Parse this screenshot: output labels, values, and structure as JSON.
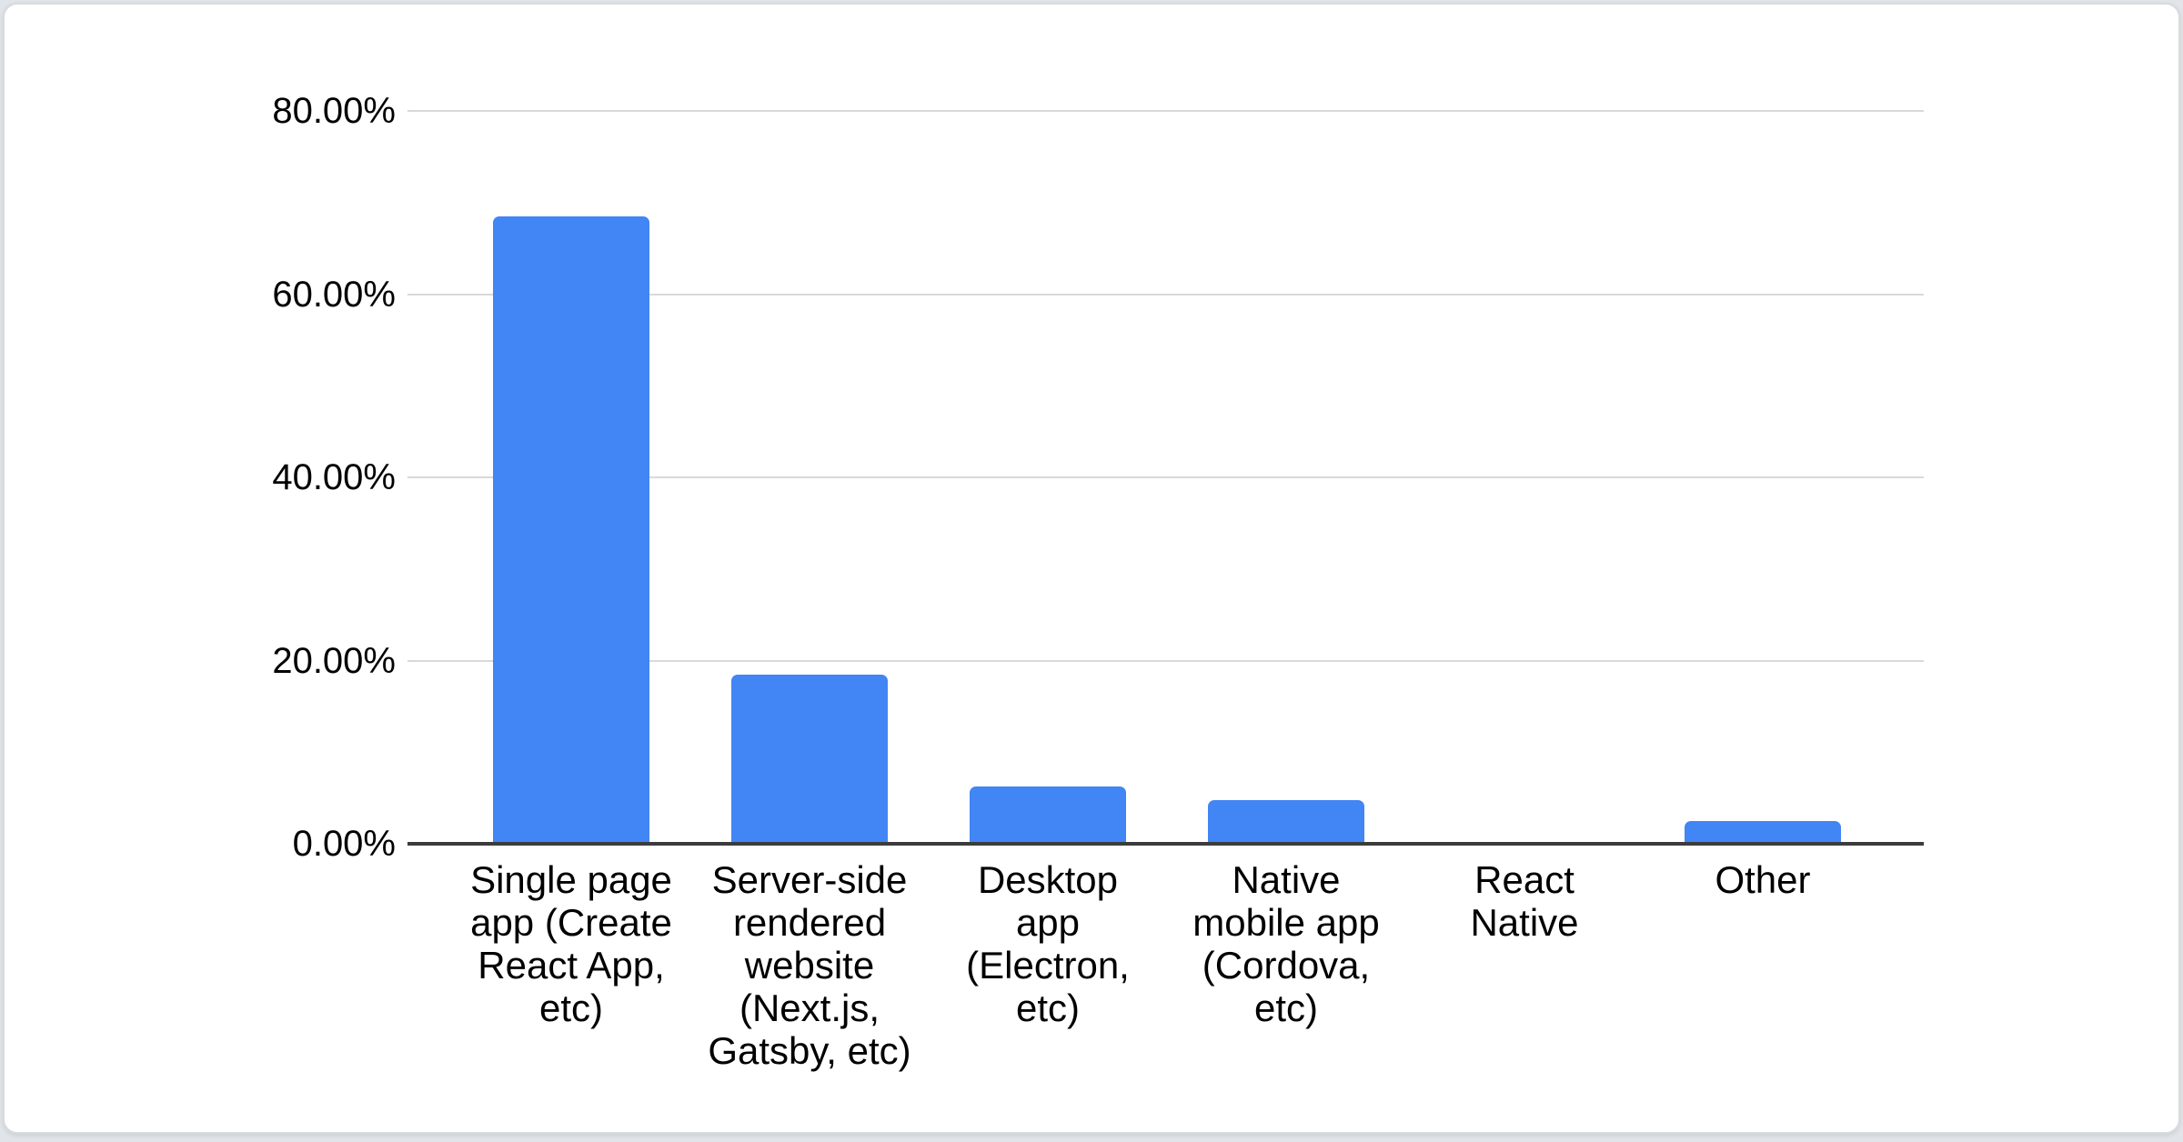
{
  "page": {
    "background_color": "#E1E4E8"
  },
  "card": {
    "background_color": "#FFFFFF",
    "border_color": "#D8DBDE"
  },
  "chart_data": {
    "type": "bar",
    "title": "",
    "xlabel": "",
    "ylabel": "",
    "legend_position": "none",
    "grid": true,
    "categories": [
      "Single page app (Create React App, etc)",
      "Server-side rendered website (Next.js, Gatsby, etc)",
      "Desktop app (Electron, etc)",
      "Native mobile app (Cordova, etc)",
      "React Native",
      "Other"
    ],
    "category_display_lines": [
      "Single page\napp (Create\nReact App,\netc)",
      "Server-side\nrendered\nwebsite\n(Next.js,\nGatsby, etc)",
      "Desktop\napp\n(Electron,\netc)",
      "Native\nmobile app\n(Cordova,\netc)",
      "React\nNative",
      "Other"
    ],
    "category_slugs": [
      "single-page-app",
      "server-side-rendered-website",
      "desktop-app",
      "native-mobile-app",
      "react-native",
      "other"
    ],
    "values": [
      68.5,
      18.5,
      6.3,
      4.8,
      0,
      2.5
    ],
    "value_unit": "percent",
    "ylim": [
      0,
      80
    ],
    "y_ticks": [
      {
        "value": 0,
        "label": "0.00%"
      },
      {
        "value": 20,
        "label": "20.00%"
      },
      {
        "value": 40,
        "label": "40.00%"
      },
      {
        "value": 60,
        "label": "60.00%"
      },
      {
        "value": 80,
        "label": "80.00%"
      }
    ],
    "bar_color": "#4285F4",
    "gridline_color": "#D9D9D9",
    "axis_line_color": "#3C3C3C",
    "text_color": "#000000"
  }
}
